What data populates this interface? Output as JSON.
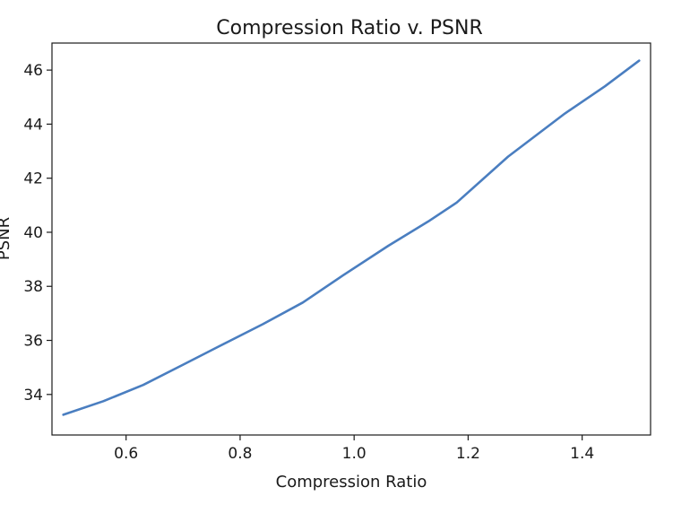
{
  "chart_data": {
    "type": "line",
    "title": "Compression Ratio v. PSNR",
    "xlabel": "Compression Ratio",
    "ylabel": "PSNR",
    "xlim": [
      0.47,
      1.52
    ],
    "ylim": [
      32.5,
      47
    ],
    "x_ticks": [
      0.6,
      0.8,
      1.0,
      1.2,
      1.4
    ],
    "x_tick_labels": [
      "0.6",
      "0.8",
      "1.0",
      "1.2",
      "1.4"
    ],
    "y_ticks": [
      34,
      36,
      38,
      40,
      42,
      44,
      46
    ],
    "y_tick_labels": [
      "34",
      "36",
      "38",
      "40",
      "42",
      "44",
      "46"
    ],
    "grid": false,
    "line_color": "#4a7ec0",
    "series": [
      {
        "x": [
          0.49,
          0.56,
          0.63,
          0.7,
          0.76,
          0.84,
          0.91,
          0.98,
          1.06,
          1.13,
          1.18,
          1.27,
          1.37,
          1.44,
          1.5
        ],
        "y": [
          33.25,
          33.75,
          34.35,
          35.1,
          35.75,
          36.6,
          37.4,
          38.4,
          39.5,
          40.4,
          41.1,
          42.8,
          44.4,
          45.4,
          46.35
        ]
      }
    ]
  }
}
